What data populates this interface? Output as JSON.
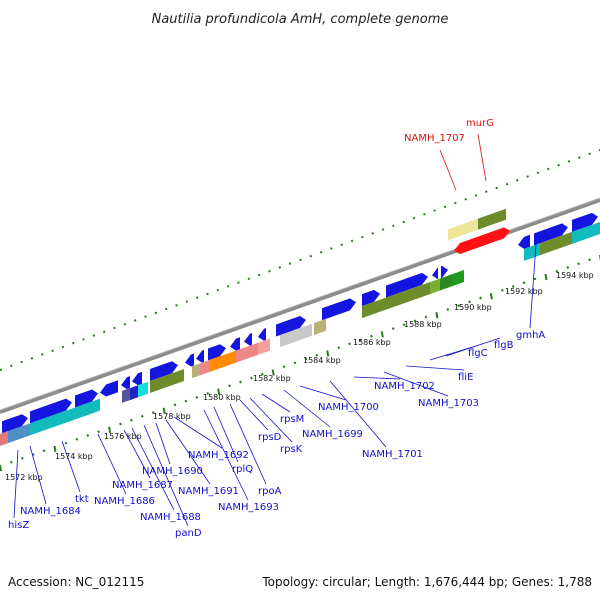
{
  "title": "Nautilia profundicola AmH, complete genome",
  "accession": "Accession: NC_012115",
  "topology": "Topology: circular; Length: 1,676,444 bp; Genes: 1,788",
  "colors": {
    "backbone": "#8c8c8c",
    "tick": "#2a7a1e",
    "gene_blue": "#1515e0",
    "label_blue": "#1010c8",
    "label_red": "#dd1111"
  },
  "ruler": [
    {
      "label": "1572 kbp"
    },
    {
      "label": "1574 kbp"
    },
    {
      "label": "1576 kbp"
    },
    {
      "label": "1578 kbp"
    },
    {
      "label": "1580 kbp"
    },
    {
      "label": "1582 kbp"
    },
    {
      "label": "1584 kbp"
    },
    {
      "label": "1586 kbp"
    },
    {
      "label": "1588 kbp"
    },
    {
      "label": "1590 kbp"
    },
    {
      "label": "1592 kbp"
    },
    {
      "label": "1594 kbp"
    }
  ],
  "genes": [
    {
      "label": "hisZ",
      "highlight": false
    },
    {
      "label": "NAMH_1684",
      "highlight": false
    },
    {
      "label": "tkt",
      "highlight": false
    },
    {
      "label": "NAMH_1686",
      "highlight": false
    },
    {
      "label": "NAMH_1687",
      "highlight": false
    },
    {
      "label": "NAMH_1688",
      "highlight": false
    },
    {
      "label": "panD",
      "highlight": false
    },
    {
      "label": "NAMH_1690",
      "highlight": false
    },
    {
      "label": "NAMH_1691",
      "highlight": false
    },
    {
      "label": "NAMH_1692",
      "highlight": false
    },
    {
      "label": "NAMH_1693",
      "highlight": false
    },
    {
      "label": "rplQ",
      "highlight": false
    },
    {
      "label": "rpoA",
      "highlight": false
    },
    {
      "label": "rpsD",
      "highlight": false
    },
    {
      "label": "rpsK",
      "highlight": false
    },
    {
      "label": "rpsM",
      "highlight": false
    },
    {
      "label": "NAMH_1699",
      "highlight": false
    },
    {
      "label": "NAMH_1700",
      "highlight": false
    },
    {
      "label": "NAMH_1701",
      "highlight": false
    },
    {
      "label": "NAMH_1702",
      "highlight": false
    },
    {
      "label": "NAMH_1703",
      "highlight": false
    },
    {
      "label": "fliE",
      "highlight": false
    },
    {
      "label": "flgC",
      "highlight": false
    },
    {
      "label": "flgB",
      "highlight": false
    },
    {
      "label": "gmhA",
      "highlight": false
    },
    {
      "label": "NAMH_1707",
      "highlight": true
    },
    {
      "label": "murG",
      "highlight": true
    }
  ]
}
